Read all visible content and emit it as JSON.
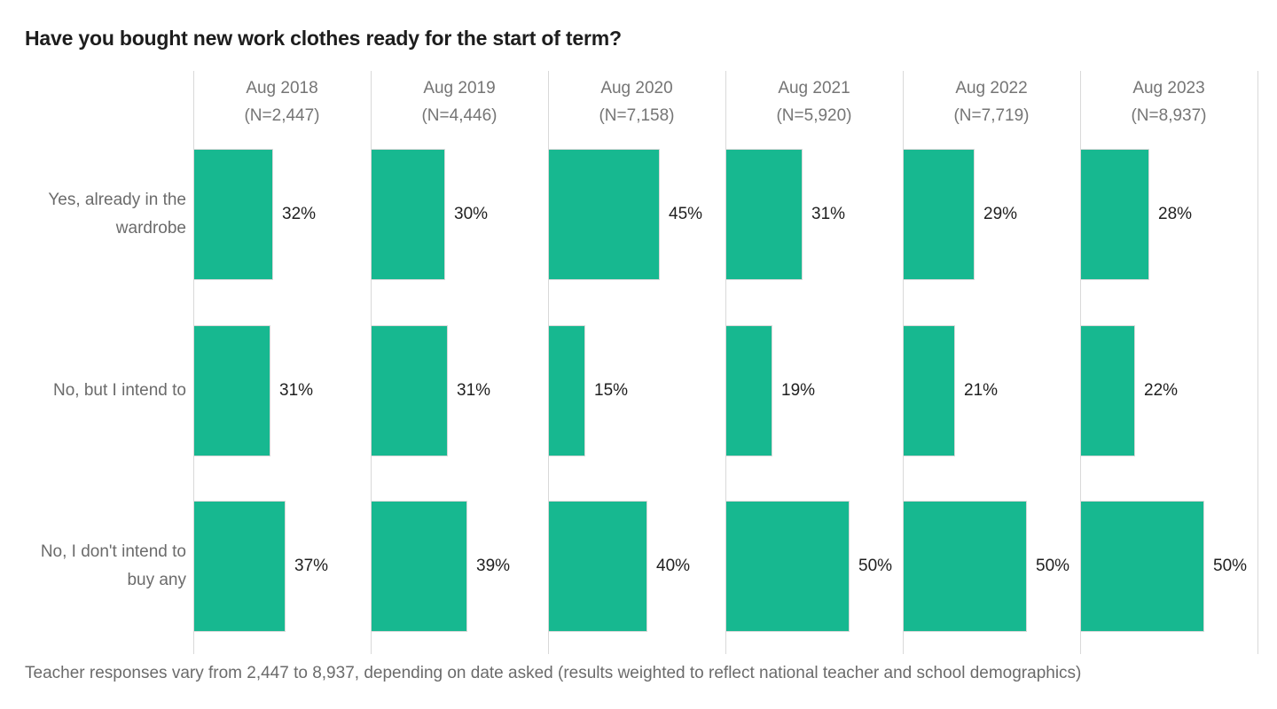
{
  "title": "Have you bought new work clothes ready for the start of term?",
  "footnote": "Teacher responses vary from 2,447 to 8,937, depending on date asked (results weighted to reflect national teacher and school demographics)",
  "colors": {
    "bar_fill": "#17b890",
    "bar_border": "#d8d8d8",
    "grid_line": "#d9d9d9",
    "title_text": "#1d1d1d",
    "header_text": "#757575",
    "row_label_text": "#6b6b6b",
    "value_text": "#1f1f1f"
  },
  "chart_data": {
    "type": "bar",
    "orientation": "horizontal",
    "unit": "%",
    "title": "Have you bought new work clothes ready for the start of term?",
    "categories": [
      "Yes, already in the wardrobe",
      "No, but I intend to",
      "No, I don't intend to buy any"
    ],
    "series": [
      {
        "name": "Aug 2018",
        "n_label": "(N=2,447)",
        "values": [
          32,
          31,
          37
        ]
      },
      {
        "name": "Aug 2019",
        "n_label": "(N=4,446)",
        "values": [
          30,
          31,
          39
        ]
      },
      {
        "name": "Aug 2020",
        "n_label": "(N=7,158)",
        "values": [
          45,
          15,
          40
        ]
      },
      {
        "name": "Aug 2021",
        "n_label": "(N=5,920)",
        "values": [
          31,
          19,
          50
        ]
      },
      {
        "name": "Aug 2022",
        "n_label": "(N=7,719)",
        "values": [
          29,
          21,
          50
        ]
      },
      {
        "name": "Aug 2023",
        "n_label": "(N=8,937)",
        "values": [
          28,
          22,
          50
        ]
      }
    ],
    "value_labels_shown": true,
    "value_label_format": "{value}%",
    "legend": "none",
    "grid": "column-divider-lines",
    "panel_axis_range": [
      0,
      71
    ]
  }
}
